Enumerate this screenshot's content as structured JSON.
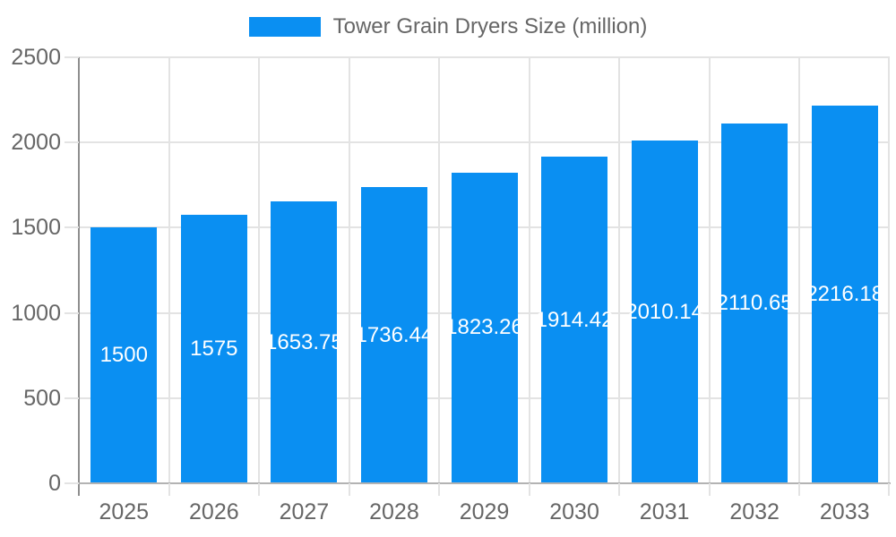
{
  "legend": {
    "label": "Tower Grain Dryers Size (million)"
  },
  "colors": {
    "bar": "#0a8ff2",
    "grid": "#e3e3e3",
    "axis_y": "#8f8f8f",
    "axis_x": "#b3b3b3",
    "tick_text": "#666666",
    "value_text": "#ffffff",
    "legend_text": "#666666"
  },
  "chart_data": {
    "type": "bar",
    "title": "Tower Grain Dryers Size (million)",
    "categories": [
      "2025",
      "2026",
      "2027",
      "2028",
      "2029",
      "2030",
      "2031",
      "2032",
      "2033"
    ],
    "values": [
      1500,
      1575,
      1653.75,
      1736.44,
      1823.26,
      1914.42,
      2010.14,
      2110.65,
      2216.18
    ],
    "value_labels": [
      "1500",
      "1575",
      "1653.75",
      "1736.44",
      "1823.26",
      "1914.42",
      "2010.14",
      "2110.65",
      "2216.18"
    ],
    "xlabel": "",
    "ylabel": "",
    "ylim": [
      0,
      2500
    ],
    "yticks": [
      0,
      500,
      1000,
      1500,
      2000,
      2500
    ],
    "grid": true,
    "legend_position": "top",
    "value_label_position": "center-of-bar"
  }
}
